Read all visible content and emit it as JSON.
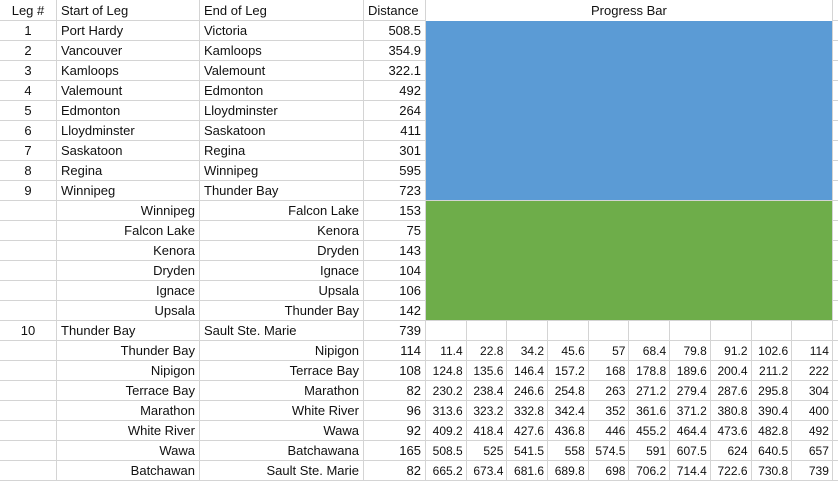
{
  "colors": {
    "progress_blue": "#5b9bd5",
    "progress_green": "#6ead4a",
    "gridline": "#d4d4d4",
    "text": "#111111"
  },
  "headers": {
    "leg": "Leg #",
    "start": "Start of Leg",
    "end": "End of Leg",
    "distance": "Distance",
    "progress": "Progress Bar"
  },
  "rows": [
    {
      "leg": "1",
      "start": "Port Hardy",
      "end": "Victoria",
      "distance": "508.5",
      "align": "main",
      "bar": "blue"
    },
    {
      "leg": "2",
      "start": "Vancouver",
      "end": "Kamloops",
      "distance": "354.9",
      "align": "main",
      "bar": "blue"
    },
    {
      "leg": "3",
      "start": "Kamloops",
      "end": "Valemount",
      "distance": "322.1",
      "align": "main",
      "bar": "blue"
    },
    {
      "leg": "4",
      "start": "Valemount",
      "end": "Edmonton",
      "distance": "492",
      "align": "main",
      "bar": "blue"
    },
    {
      "leg": "5",
      "start": "Edmonton",
      "end": "Lloydminster",
      "distance": "264",
      "align": "main",
      "bar": "blue"
    },
    {
      "leg": "6",
      "start": "Lloydminster",
      "end": "Saskatoon",
      "distance": "411",
      "align": "main",
      "bar": "blue"
    },
    {
      "leg": "7",
      "start": "Saskatoon",
      "end": "Regina",
      "distance": "301",
      "align": "main",
      "bar": "blue"
    },
    {
      "leg": "8",
      "start": "Regina",
      "end": "Winnipeg",
      "distance": "595",
      "align": "main",
      "bar": "blue"
    },
    {
      "leg": "9",
      "start": "Winnipeg",
      "end": "Thunder Bay",
      "distance": "723",
      "align": "main",
      "bar": "blue"
    },
    {
      "leg": "",
      "start": "Winnipeg",
      "end": "Falcon Lake",
      "distance": "153",
      "align": "sub",
      "bar": "green"
    },
    {
      "leg": "",
      "start": "Falcon Lake",
      "end": "Kenora",
      "distance": "75",
      "align": "sub",
      "bar": "green"
    },
    {
      "leg": "",
      "start": "Kenora",
      "end": "Dryden",
      "distance": "143",
      "align": "sub",
      "bar": "green"
    },
    {
      "leg": "",
      "start": "Dryden",
      "end": "Ignace",
      "distance": "104",
      "align": "sub",
      "bar": "green"
    },
    {
      "leg": "",
      "start": "Ignace",
      "end": "Upsala",
      "distance": "106",
      "align": "sub",
      "bar": "green"
    },
    {
      "leg": "",
      "start": "Upsala",
      "end": "Thunder Bay",
      "distance": "142",
      "align": "sub",
      "bar": "green"
    },
    {
      "leg": "10",
      "start": "Thunder Bay",
      "end": "Sault Ste. Marie",
      "distance": "739",
      "align": "main",
      "bar": "cells",
      "cells": [
        "",
        "",
        "",
        "",
        "",
        "",
        "",
        "",
        "",
        ""
      ]
    },
    {
      "leg": "",
      "start": "Thunder Bay",
      "end": "Nipigon",
      "distance": "114",
      "align": "sub",
      "bar": "cells",
      "cells": [
        "11.4",
        "22.8",
        "34.2",
        "45.6",
        "57",
        "68.4",
        "79.8",
        "91.2",
        "102.6",
        "114"
      ]
    },
    {
      "leg": "",
      "start": "Nipigon",
      "end": "Terrace Bay",
      "distance": "108",
      "align": "sub",
      "bar": "cells",
      "cells": [
        "124.8",
        "135.6",
        "146.4",
        "157.2",
        "168",
        "178.8",
        "189.6",
        "200.4",
        "211.2",
        "222"
      ]
    },
    {
      "leg": "",
      "start": "Terrace Bay",
      "end": "Marathon",
      "distance": "82",
      "align": "sub",
      "bar": "cells",
      "cells": [
        "230.2",
        "238.4",
        "246.6",
        "254.8",
        "263",
        "271.2",
        "279.4",
        "287.6",
        "295.8",
        "304"
      ]
    },
    {
      "leg": "",
      "start": "Marathon",
      "end": "White River",
      "distance": "96",
      "align": "sub",
      "bar": "cells",
      "cells": [
        "313.6",
        "323.2",
        "332.8",
        "342.4",
        "352",
        "361.6",
        "371.2",
        "380.8",
        "390.4",
        "400"
      ]
    },
    {
      "leg": "",
      "start": "White River",
      "end": "Wawa",
      "distance": "92",
      "align": "sub",
      "bar": "cells",
      "cells": [
        "409.2",
        "418.4",
        "427.6",
        "436.8",
        "446",
        "455.2",
        "464.4",
        "473.6",
        "482.8",
        "492"
      ]
    },
    {
      "leg": "",
      "start": "Wawa",
      "end": "Batchawana",
      "distance": "165",
      "align": "sub",
      "bar": "cells",
      "cells": [
        "508.5",
        "525",
        "541.5",
        "558",
        "574.5",
        "591",
        "607.5",
        "624",
        "640.5",
        "657"
      ]
    },
    {
      "leg": "",
      "start": "Batchawan",
      "end": "Sault Ste. Marie",
      "distance": "82",
      "align": "sub",
      "bar": "cells",
      "cells": [
        "665.2",
        "673.4",
        "681.6",
        "689.8",
        "698",
        "706.2",
        "714.4",
        "722.6",
        "730.8",
        "739"
      ]
    }
  ]
}
